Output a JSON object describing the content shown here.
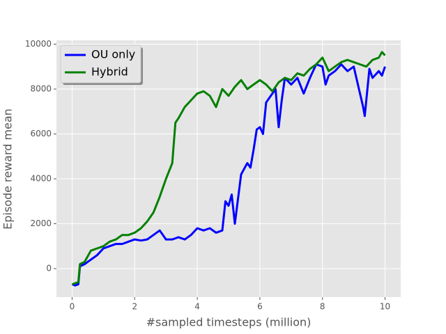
{
  "chart_data": {
    "type": "line",
    "xlabel": "#sampled timesteps (million)",
    "ylabel": "Episode reward mean",
    "xlim": [
      -0.5,
      10.5
    ],
    "ylim": [
      -1270,
      10170
    ],
    "xticks": [
      0,
      2,
      4,
      6,
      8,
      10
    ],
    "yticks": [
      0,
      2000,
      4000,
      6000,
      8000,
      10000
    ],
    "grid": true,
    "legend": "upper-left",
    "series": [
      {
        "name": "OU only",
        "color": "#0000ff",
        "x": [
          0,
          0.1,
          0.2,
          0.25,
          0.4,
          0.6,
          0.8,
          1.0,
          1.2,
          1.4,
          1.6,
          1.8,
          2.0,
          2.2,
          2.4,
          2.6,
          2.8,
          3.0,
          3.2,
          3.4,
          3.6,
          3.8,
          4.0,
          4.2,
          4.4,
          4.6,
          4.8,
          4.9,
          5.0,
          5.1,
          5.2,
          5.4,
          5.6,
          5.7,
          5.8,
          5.9,
          6.0,
          6.1,
          6.2,
          6.4,
          6.5,
          6.6,
          6.7,
          6.8,
          7.0,
          7.2,
          7.4,
          7.6,
          7.8,
          8.0,
          8.1,
          8.2,
          8.4,
          8.6,
          8.8,
          9.0,
          9.1,
          9.3,
          9.35,
          9.5,
          9.6,
          9.8,
          9.9,
          10.0
        ],
        "values": [
          -700,
          -750,
          -700,
          100,
          200,
          400,
          600,
          900,
          1000,
          1100,
          1100,
          1200,
          1300,
          1250,
          1300,
          1500,
          1700,
          1300,
          1300,
          1400,
          1300,
          1500,
          1800,
          1700,
          1800,
          1600,
          1700,
          3000,
          2800,
          3300,
          2000,
          4200,
          4700,
          4500,
          5300,
          6200,
          6300,
          6000,
          7400,
          7800,
          8000,
          6300,
          7500,
          8500,
          8200,
          8500,
          7800,
          8500,
          9100,
          9000,
          8200,
          8600,
          8800,
          9100,
          8800,
          9000,
          8400,
          7200,
          6800,
          8900,
          8500,
          8800,
          8600,
          9000
        ]
      },
      {
        "name": "Hybrid",
        "color": "#008000",
        "x": [
          0,
          0.2,
          0.25,
          0.4,
          0.6,
          0.8,
          1.0,
          1.2,
          1.4,
          1.6,
          1.8,
          2.0,
          2.2,
          2.4,
          2.6,
          2.8,
          3.0,
          3.2,
          3.3,
          3.4,
          3.6,
          3.8,
          4.0,
          4.2,
          4.4,
          4.6,
          4.8,
          5.0,
          5.2,
          5.4,
          5.6,
          5.8,
          6.0,
          6.2,
          6.4,
          6.6,
          6.8,
          7.0,
          7.2,
          7.4,
          7.6,
          7.8,
          8.0,
          8.2,
          8.4,
          8.6,
          8.8,
          9.0,
          9.2,
          9.4,
          9.6,
          9.8,
          9.9,
          10.0
        ],
        "values": [
          -700,
          -600,
          200,
          300,
          800,
          900,
          1000,
          1200,
          1300,
          1500,
          1500,
          1600,
          1800,
          2100,
          2500,
          3200,
          4000,
          4700,
          6500,
          6700,
          7200,
          7500,
          7800,
          7900,
          7700,
          7200,
          8000,
          7700,
          8100,
          8400,
          8000,
          8200,
          8400,
          8200,
          7900,
          8300,
          8500,
          8400,
          8700,
          8600,
          8900,
          9100,
          9400,
          8800,
          9000,
          9200,
          9300,
          9200,
          9100,
          9000,
          9300,
          9400,
          9650,
          9500
        ]
      }
    ]
  }
}
